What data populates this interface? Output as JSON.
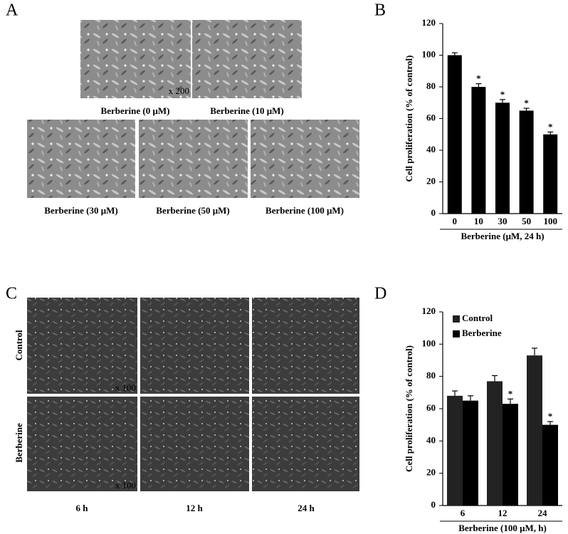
{
  "panel_a": {
    "label": "A",
    "magnification": "x 200",
    "captions": [
      "Berberine (0 μM)",
      "Berberine (10 μM)",
      "Berberine (30 μM)",
      "Berberine (50 μM)",
      "Berberine (100 μM)"
    ]
  },
  "panel_c": {
    "label": "C",
    "magnification": "x 100",
    "rows": [
      "Control",
      "Berberine"
    ],
    "columns": [
      "6 h",
      "12 h",
      "24 h"
    ]
  },
  "chart_data": [
    {
      "label": "B",
      "type": "bar",
      "ylabel": "Cell proliferation (% of control)",
      "xlabel": "Berberine (μM, 24 h)",
      "categories": [
        "0",
        "10",
        "30",
        "50",
        "100"
      ],
      "values": [
        100,
        80,
        70,
        65,
        50
      ],
      "errors": [
        1.5,
        2,
        2,
        1.5,
        1.5
      ],
      "markers": [
        null,
        "*",
        "*",
        "*",
        "*"
      ],
      "color": "#000000",
      "ylim": [
        0,
        120
      ],
      "yticks": [
        0,
        20,
        40,
        60,
        80,
        100,
        120
      ]
    },
    {
      "label": "D",
      "type": "grouped_bar",
      "ylabel": "Cell proliferation (% of control)",
      "xlabel": "Berberine (100 μM, h)",
      "categories": [
        "6",
        "12",
        "24"
      ],
      "series": [
        {
          "name": "Control",
          "color": "#222222",
          "values": [
            68,
            77,
            93
          ],
          "errors": [
            3,
            3.5,
            4.5
          ],
          "markers": [
            null,
            null,
            null
          ]
        },
        {
          "name": "Berberine",
          "color": "#000000",
          "values": [
            65,
            63,
            50
          ],
          "errors": [
            3,
            3,
            2
          ],
          "markers": [
            null,
            "*",
            "*"
          ]
        }
      ],
      "legend": "upper-left",
      "ylim": [
        0,
        120
      ],
      "yticks": [
        0,
        20,
        40,
        60,
        80,
        100,
        120
      ]
    }
  ]
}
